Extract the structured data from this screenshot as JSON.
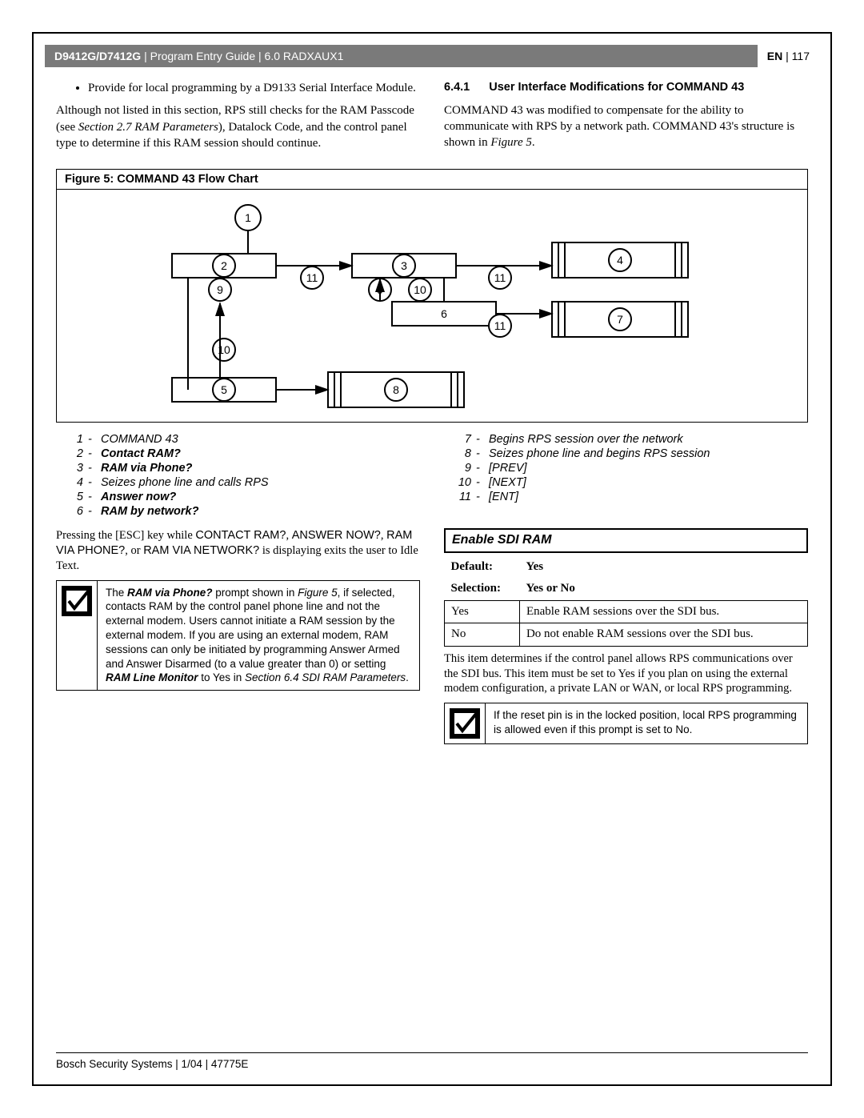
{
  "header": {
    "product": "D9412G/D7412G",
    "guide": "Program Entry Guide",
    "section": "6.0 RADXAUX1",
    "lang": "EN",
    "page": "117"
  },
  "left_col": {
    "bullet": "Provide for local programming by a D9133 Serial Interface Module.",
    "para_pre": "Although not listed in this section, RPS still checks for the RAM Passcode (see ",
    "para_ref": "Section 2.7 RAM Parameters",
    "para_post": "), Datalock Code, and the control panel type to determine if this RAM session should continue."
  },
  "right_col": {
    "sec_num": "6.4.1",
    "sec_title": "User Interface Modifications for COMMAND 43",
    "para_pre": "COMMAND 43 was modified to compensate for the ability to communicate with RPS by a network path. COMMAND 43's structure is shown in ",
    "para_ref": "Figure 5",
    "para_post": "."
  },
  "figure": {
    "title": "Figure 5: COMMAND 43 Flow Chart",
    "nodes": {
      "n1": "1",
      "n2": "2",
      "n3": "3",
      "n4": "4",
      "n5": "5",
      "n6": "6",
      "n7": "7",
      "n8": "8",
      "n9a": "9",
      "n9b": "9",
      "n10a": "10",
      "n10b": "10",
      "n11a": "11",
      "n11b": "11",
      "n11c": "11"
    }
  },
  "legend_left": [
    {
      "n": "1",
      "t": "COMMAND 43",
      "b": false
    },
    {
      "n": "2",
      "t": "Contact RAM?",
      "b": true
    },
    {
      "n": "3",
      "t": "RAM via Phone?",
      "b": true
    },
    {
      "n": "4",
      "t": "Seizes phone line and calls RPS",
      "b": false
    },
    {
      "n": "5",
      "t": "Answer now?",
      "b": true
    },
    {
      "n": "6",
      "t": "RAM by network?",
      "b": true
    }
  ],
  "legend_right": [
    {
      "n": "7",
      "t": "Begins RPS session over the network",
      "b": false
    },
    {
      "n": "8",
      "t": "Seizes phone line and begins RPS session",
      "b": false
    },
    {
      "n": "9",
      "t": "[PREV]",
      "b": false
    },
    {
      "n": "10",
      "t": "[NEXT]",
      "b": false
    },
    {
      "n": "11",
      "t": "[ENT]",
      "b": false
    }
  ],
  "escape": {
    "pre": "Pressing the [ESC] key while ",
    "k1": "CONTACT RAM?",
    "mid1": ", ",
    "k2": "ANSWER NOW?",
    "mid2": ", ",
    "k3": "RAM VIA PHONE?",
    "mid3": ", or ",
    "k4": "RAM VIA NETWORK?",
    "post": " is displaying exits the user to Idle Text."
  },
  "note1": {
    "t1": "The ",
    "b1": "RAM via Phone?",
    "t2": " prompt shown in ",
    "i1": "Figure 5",
    "t3": ", if selected, contacts RAM by the control panel phone line and not the external modem. Users cannot initiate a RAM session by the external modem. If you are using an external modem, RAM sessions can only be initiated by programming Answer Armed and Answer Disarmed (to a value greater than 0) or setting ",
    "b2": "RAM Line Monitor",
    "t4": " to Yes in ",
    "i2": "Section 6.4 SDI RAM Parameters",
    "t5": "."
  },
  "param": {
    "title": "Enable SDI RAM",
    "default_label": "Default:",
    "default_val": "Yes",
    "selection_label": "Selection:",
    "selection_val": "Yes or No",
    "rows": [
      {
        "k": "Yes",
        "v": "Enable RAM sessions over the SDI bus."
      },
      {
        "k": "No",
        "v": "Do not enable RAM sessions over the SDI bus."
      }
    ],
    "after": "This item determines if the control panel allows RPS communications over the SDI bus. This item must be set to Yes if you plan on using the external modem configuration, a private LAN or WAN, or local RPS programming."
  },
  "note2": "If the reset pin is in the locked position, local RPS programming is allowed even if this prompt is set to No.",
  "footer": "Bosch Security Systems | 1/04 | 47775E"
}
